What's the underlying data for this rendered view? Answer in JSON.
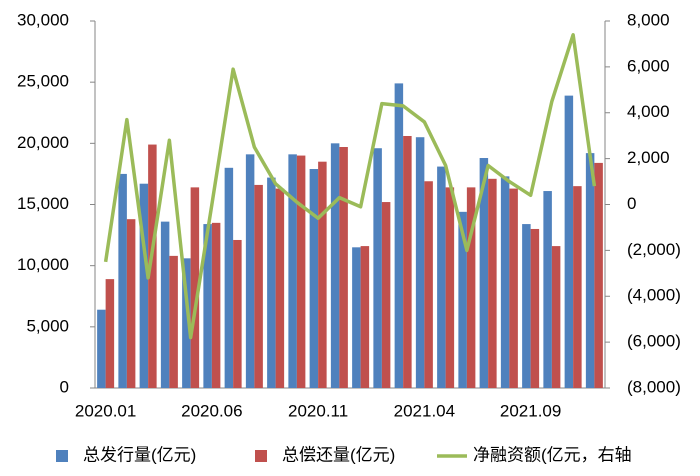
{
  "chart_data": {
    "type": "bar+line",
    "categories": [
      "2020.01",
      null,
      null,
      null,
      null,
      "2020.06",
      null,
      null,
      null,
      null,
      "2020.11",
      null,
      null,
      null,
      null,
      "2021.04",
      null,
      null,
      null,
      null,
      "2021.09",
      null,
      null,
      null
    ],
    "series": [
      {
        "name": "总发行量(亿元)",
        "color": "#4f81bd",
        "type": "bar",
        "values": [
          6400,
          17500,
          16700,
          13600,
          10600,
          13400,
          18000,
          19100,
          17200,
          19100,
          17900,
          20000,
          11500,
          19600,
          24900,
          20500,
          18100,
          14400,
          18800,
          17300,
          13400,
          16100,
          23900,
          19200
        ]
      },
      {
        "name": "总偿还量(亿元)",
        "color": "#c0504d",
        "type": "bar",
        "values": [
          8900,
          13800,
          19900,
          10800,
          16400,
          13500,
          12100,
          16600,
          16300,
          19000,
          18500,
          19700,
          11600,
          15200,
          20600,
          16900,
          16400,
          16400,
          17100,
          16300,
          13000,
          11600,
          16500,
          18400
        ]
      },
      {
        "name": "净融资额(亿元，右轴",
        "color": "#9bbb59",
        "type": "line",
        "axis": "y2",
        "values": [
          -2500,
          3700,
          -3200,
          2800,
          -5800,
          0,
          5900,
          2500,
          900,
          100,
          -600,
          300,
          -100,
          4400,
          4300,
          3600,
          1700,
          -2000,
          1700,
          1000,
          400,
          4500,
          7400,
          800
        ]
      }
    ],
    "ylim": [
      0,
      30000
    ],
    "yticks": [
      0,
      {
        "value": 5000,
        "label": "5,000"
      },
      {
        "value": 10000,
        "label": "10,000"
      },
      {
        "value": 15000,
        "label": "15,000"
      },
      {
        "value": 20000,
        "label": "20,000"
      },
      {
        "value": 25000,
        "label": "25,000"
      },
      {
        "value": 30000,
        "label": "30,000"
      }
    ],
    "y2lim": [
      -8000,
      8000
    ],
    "y2ticks": [
      {
        "value": -8000,
        "label": "(8,000)"
      },
      {
        "value": -6000,
        "label": "(6,000)"
      },
      {
        "value": -4000,
        "label": "(4,000)"
      },
      {
        "value": -2000,
        "label": "(2,000)"
      },
      0,
      {
        "value": 2000,
        "label": "2,000"
      },
      {
        "value": 4000,
        "label": "4,000"
      },
      {
        "value": 6000,
        "label": "6,000"
      },
      {
        "value": 8000,
        "label": "8,000"
      }
    ],
    "y2_negative_color": "#ff0000",
    "legend": "bottom"
  }
}
